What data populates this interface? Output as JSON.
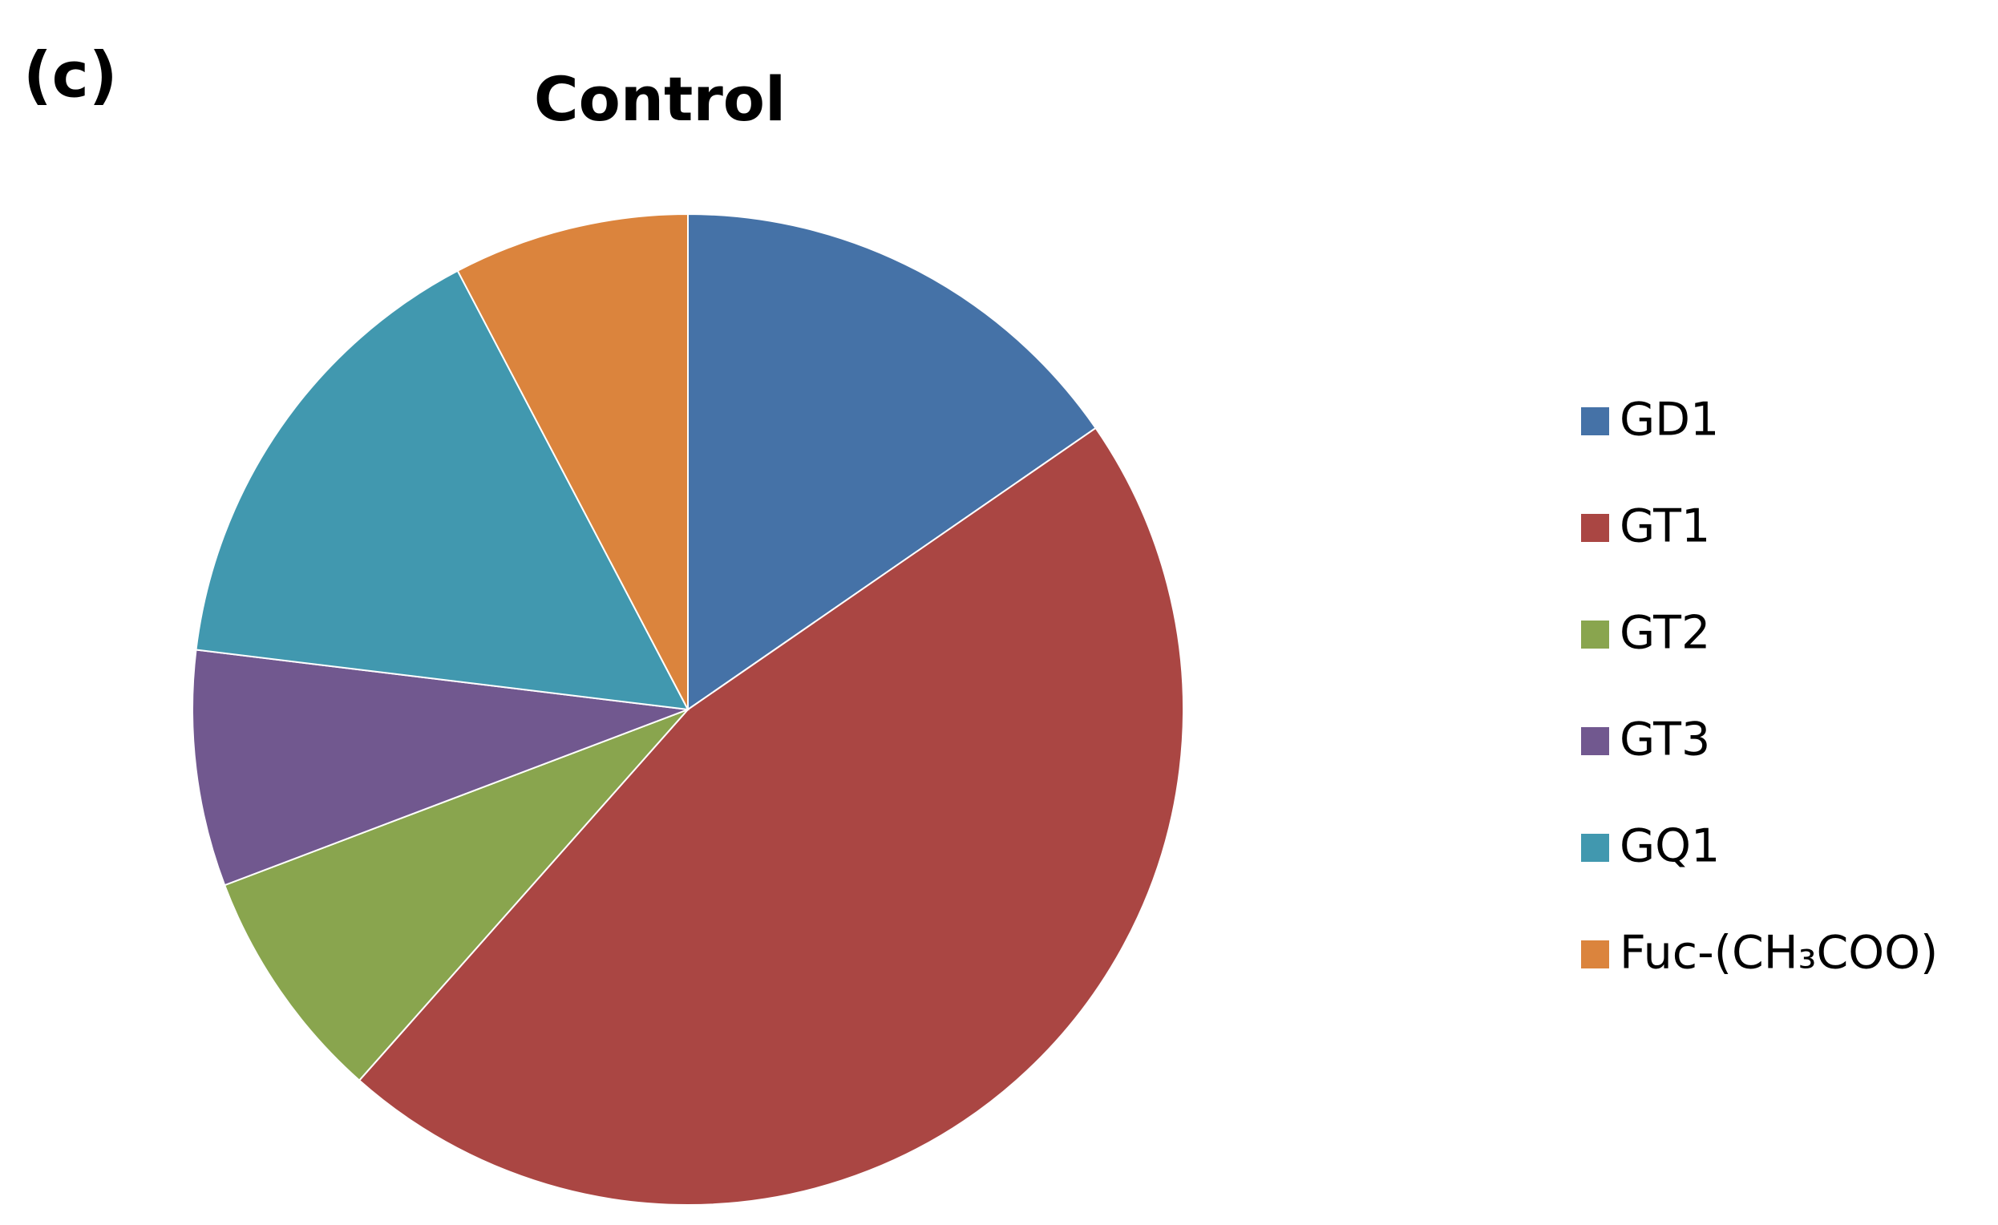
{
  "chart_data": {
    "type": "pie",
    "panel_label": "(c)",
    "title": "Control",
    "categories": [
      "GD1",
      "GT1",
      "GT2",
      "GT3",
      "GQ1",
      "Fuc-(CH₃COO)"
    ],
    "values": [
      15.4,
      46.2,
      7.7,
      7.7,
      15.4,
      7.7
    ],
    "colors": [
      "#4572a7",
      "#aa4643",
      "#89a54e",
      "#71588f",
      "#4198af",
      "#db843d"
    ],
    "legend": "right"
  }
}
